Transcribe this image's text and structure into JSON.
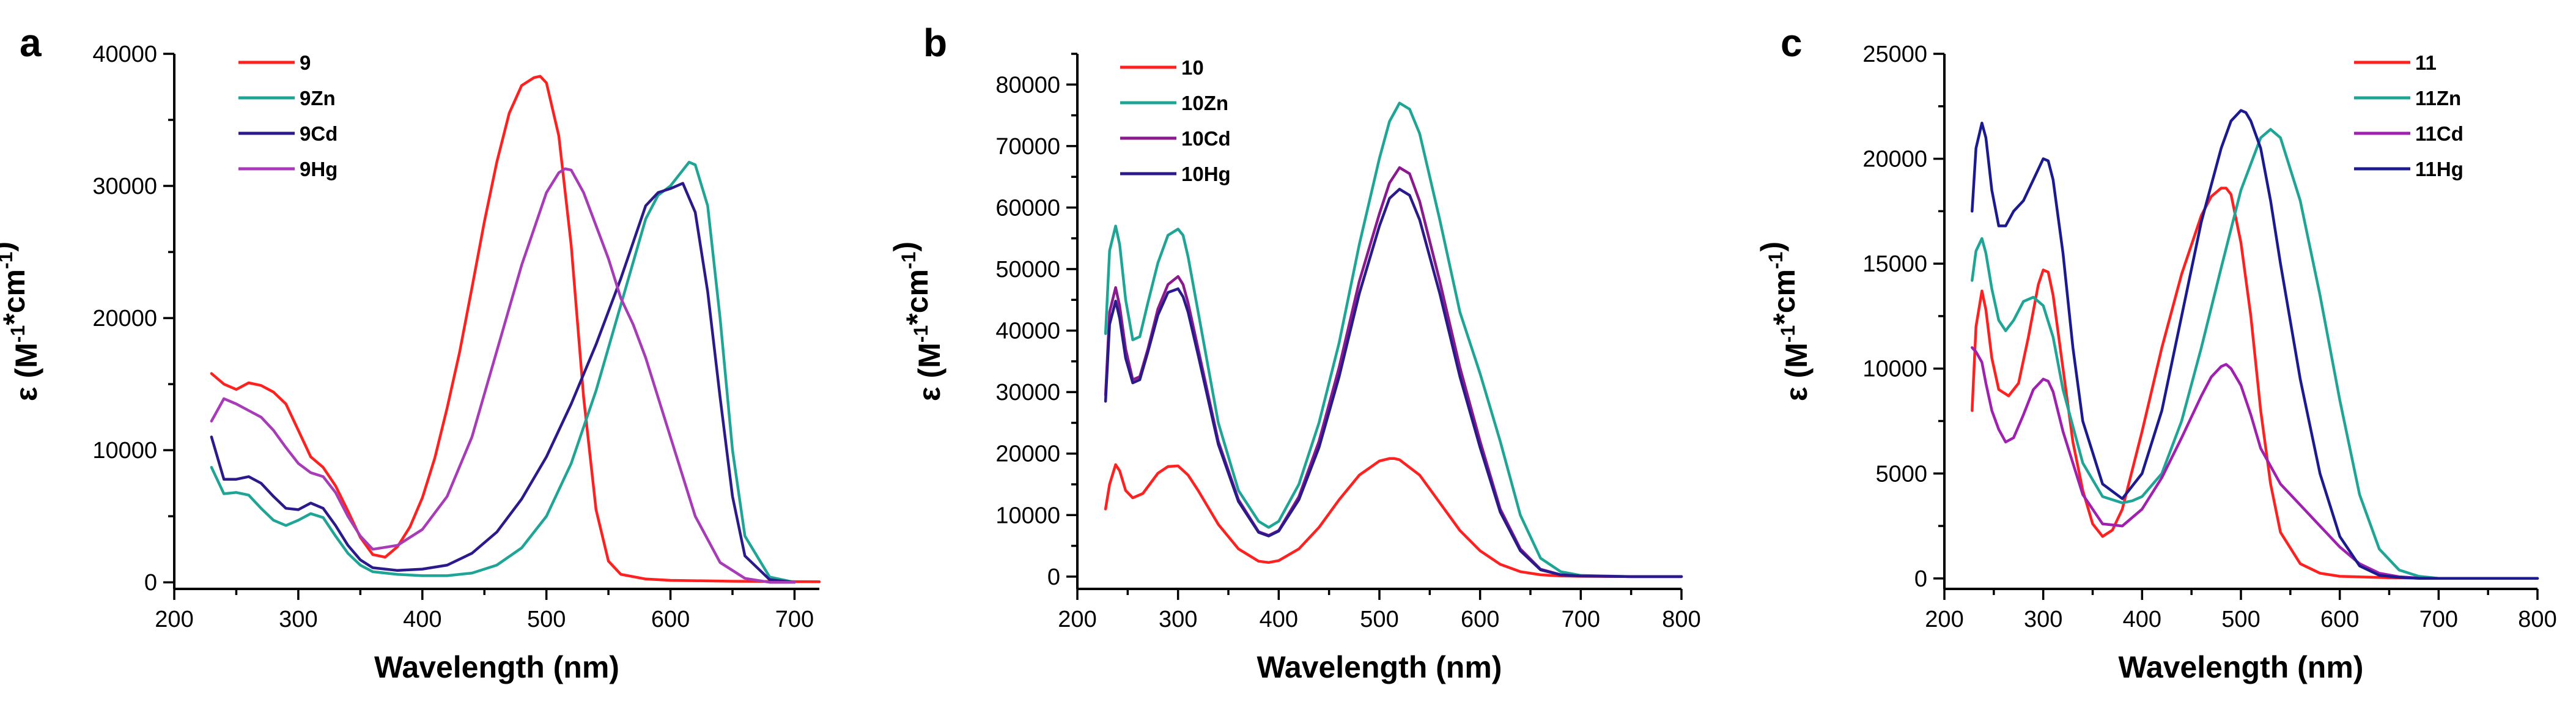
{
  "chart_data": [
    {
      "panel": "a",
      "type": "line",
      "title": "",
      "xlabel": "Wavelength (nm)",
      "ylabel_prefix": "ε (M",
      "ylabel_sup1": "-1",
      "ylabel_mid": "*cm",
      "ylabel_sup2": "-1",
      "ylabel_suffix": ")",
      "xlim": [
        200,
        720
      ],
      "ylim": [
        -500,
        40000
      ],
      "xticks": [
        200,
        300,
        400,
        500,
        600,
        700
      ],
      "yticks": [
        0,
        10000,
        20000,
        30000,
        40000
      ],
      "legend_position": "top-left",
      "series": [
        {
          "name": "9",
          "color": "#ff2020",
          "x": [
            230,
            240,
            250,
            260,
            270,
            280,
            290,
            300,
            310,
            320,
            330,
            340,
            350,
            360,
            370,
            380,
            390,
            400,
            410,
            420,
            430,
            440,
            450,
            460,
            470,
            480,
            490,
            495,
            500,
            510,
            520,
            530,
            540,
            550,
            560,
            580,
            600,
            650,
            700,
            720
          ],
          "y": [
            15800,
            15000,
            14600,
            15100,
            14900,
            14400,
            13500,
            11500,
            9500,
            8700,
            7300,
            5400,
            3400,
            2100,
            1900,
            2700,
            4200,
            6400,
            9400,
            13200,
            17400,
            22300,
            27300,
            31800,
            35500,
            37600,
            38200,
            38300,
            37800,
            33800,
            25500,
            14000,
            5500,
            1600,
            600,
            250,
            150,
            80,
            50,
            40
          ]
        },
        {
          "name": "9Zn",
          "color": "#1fa596",
          "x": [
            230,
            240,
            250,
            260,
            270,
            280,
            290,
            300,
            310,
            320,
            330,
            340,
            350,
            360,
            380,
            400,
            420,
            440,
            460,
            480,
            500,
            520,
            540,
            560,
            580,
            590,
            600,
            610,
            615,
            620,
            630,
            640,
            650,
            660,
            680,
            700
          ],
          "y": [
            8700,
            6700,
            6800,
            6600,
            5600,
            4700,
            4300,
            4700,
            5200,
            4900,
            3500,
            2200,
            1300,
            800,
            600,
            500,
            500,
            700,
            1300,
            2600,
            5000,
            9000,
            14500,
            21000,
            27500,
            29300,
            30000,
            31200,
            31800,
            31600,
            28500,
            20000,
            10000,
            3500,
            400,
            0
          ]
        },
        {
          "name": "9Cd",
          "color": "#2a1a8c",
          "x": [
            230,
            240,
            250,
            260,
            270,
            280,
            290,
            300,
            310,
            320,
            330,
            340,
            350,
            360,
            380,
            400,
            420,
            440,
            460,
            480,
            500,
            520,
            540,
            560,
            580,
            590,
            600,
            610,
            620,
            630,
            640,
            650,
            660,
            680,
            700
          ],
          "y": [
            11000,
            7800,
            7800,
            8000,
            7500,
            6500,
            5600,
            5500,
            6000,
            5600,
            4300,
            2800,
            1700,
            1100,
            900,
            1000,
            1300,
            2200,
            3800,
            6300,
            9500,
            13500,
            18000,
            23000,
            28500,
            29500,
            29800,
            30200,
            28000,
            22000,
            14000,
            6500,
            2000,
            200,
            0
          ]
        },
        {
          "name": "9Hg",
          "color": "#a83cb8",
          "x": [
            230,
            240,
            250,
            260,
            270,
            280,
            290,
            300,
            310,
            320,
            330,
            340,
            350,
            360,
            380,
            400,
            420,
            440,
            460,
            480,
            500,
            510,
            515,
            520,
            530,
            540,
            550,
            560,
            570,
            580,
            600,
            620,
            640,
            660,
            680,
            700
          ],
          "y": [
            12200,
            13900,
            13500,
            13000,
            12500,
            11500,
            10200,
            9000,
            8300,
            8000,
            6800,
            5000,
            3500,
            2500,
            2800,
            4000,
            6500,
            11000,
            17500,
            24000,
            29500,
            31000,
            31300,
            31200,
            29500,
            27000,
            24500,
            21500,
            19500,
            17000,
            11000,
            5000,
            1500,
            300,
            0,
            0
          ]
        }
      ]
    },
    {
      "panel": "b",
      "type": "line",
      "title": "",
      "xlabel": "Wavelength (nm)",
      "ylabel_prefix": "ε (M",
      "ylabel_sup1": "-1",
      "ylabel_mid": "*cm",
      "ylabel_sup2": "-1",
      "ylabel_suffix": ")",
      "xlim": [
        200,
        800
      ],
      "ylim": [
        -2000,
        85000
      ],
      "xticks": [
        200,
        300,
        400,
        500,
        600,
        700,
        800
      ],
      "yticks": [
        0,
        10000,
        20000,
        30000,
        40000,
        50000,
        60000,
        70000,
        80000
      ],
      "legend_position": "top-left",
      "series": [
        {
          "name": "10",
          "color": "#ff2020",
          "x": [
            228,
            232,
            238,
            242,
            248,
            255,
            265,
            280,
            290,
            300,
            310,
            320,
            340,
            360,
            380,
            390,
            400,
            420,
            440,
            460,
            480,
            500,
            510,
            515,
            520,
            540,
            560,
            580,
            600,
            620,
            640,
            660,
            680,
            700,
            750,
            800
          ],
          "y": [
            11000,
            15000,
            18200,
            17200,
            14000,
            12800,
            13500,
            16800,
            17900,
            18000,
            16500,
            14000,
            8500,
            4500,
            2500,
            2300,
            2600,
            4500,
            8000,
            12500,
            16500,
            18800,
            19200,
            19200,
            19000,
            16500,
            12000,
            7500,
            4200,
            2000,
            800,
            300,
            100,
            50,
            0,
            0
          ]
        },
        {
          "name": "10Zn",
          "color": "#1fa596",
          "x": [
            228,
            232,
            238,
            242,
            248,
            255,
            262,
            270,
            280,
            290,
            300,
            305,
            310,
            320,
            340,
            360,
            380,
            390,
            400,
            420,
            440,
            460,
            480,
            500,
            510,
            520,
            530,
            540,
            560,
            580,
            600,
            620,
            640,
            660,
            680,
            700,
            750,
            800
          ],
          "y": [
            39500,
            53000,
            57000,
            54000,
            45000,
            38500,
            39000,
            44500,
            51000,
            55500,
            56500,
            55500,
            52000,
            43000,
            25000,
            14000,
            9000,
            8000,
            9000,
            15000,
            25000,
            38000,
            54000,
            68000,
            74000,
            77000,
            76000,
            72000,
            58000,
            43000,
            33000,
            22000,
            10000,
            3000,
            800,
            200,
            0,
            0
          ]
        },
        {
          "name": "10Cd",
          "color": "#8a1a8e",
          "x": [
            228,
            232,
            238,
            242,
            248,
            255,
            262,
            270,
            280,
            290,
            300,
            305,
            310,
            320,
            340,
            360,
            380,
            390,
            400,
            420,
            440,
            460,
            480,
            500,
            510,
            520,
            530,
            540,
            560,
            580,
            600,
            620,
            640,
            660,
            680,
            700,
            750,
            800
          ],
          "y": [
            29500,
            43000,
            47000,
            44000,
            37000,
            32000,
            32500,
            37000,
            43500,
            47500,
            48800,
            47500,
            44500,
            37000,
            22000,
            12500,
            7300,
            6700,
            7500,
            13000,
            22000,
            34000,
            48000,
            59000,
            64000,
            66500,
            65500,
            61000,
            48000,
            34000,
            22000,
            11000,
            4500,
            1200,
            300,
            100,
            0,
            0
          ]
        },
        {
          "name": "10Hg",
          "color": "#2a1a8c",
          "x": [
            228,
            232,
            238,
            242,
            248,
            255,
            262,
            270,
            280,
            290,
            300,
            305,
            310,
            320,
            340,
            360,
            380,
            390,
            400,
            420,
            440,
            460,
            480,
            500,
            510,
            520,
            530,
            540,
            560,
            580,
            600,
            620,
            640,
            660,
            680,
            700,
            750,
            800
          ],
          "y": [
            28500,
            41000,
            44800,
            42000,
            35500,
            31500,
            32000,
            36500,
            42500,
            46200,
            46800,
            45500,
            43000,
            36000,
            21500,
            12200,
            7200,
            6600,
            7400,
            12500,
            21000,
            32500,
            46000,
            57000,
            61500,
            63000,
            62000,
            58000,
            46000,
            32500,
            21000,
            10500,
            4200,
            1100,
            300,
            100,
            0,
            0
          ]
        }
      ]
    },
    {
      "panel": "c",
      "type": "line",
      "title": "",
      "xlabel": "Wavelength (nm)",
      "ylabel_prefix": "ε (M",
      "ylabel_sup1": "-1",
      "ylabel_mid": "*cm",
      "ylabel_sup2": "-1",
      "ylabel_suffix": ")",
      "xlim": [
        200,
        800
      ],
      "ylim": [
        -500,
        25000
      ],
      "xticks": [
        200,
        300,
        400,
        500,
        600,
        700,
        800
      ],
      "yticks": [
        0,
        5000,
        10000,
        15000,
        20000,
        25000
      ],
      "legend_position": "top-right",
      "series": [
        {
          "name": "11",
          "color": "#ff2020",
          "x": [
            228,
            232,
            238,
            242,
            248,
            255,
            265,
            275,
            285,
            295,
            300,
            305,
            310,
            320,
            330,
            340,
            350,
            360,
            370,
            380,
            400,
            420,
            440,
            460,
            470,
            480,
            485,
            490,
            500,
            510,
            520,
            530,
            540,
            560,
            580,
            600,
            650,
            700,
            800
          ],
          "y": [
            8000,
            12000,
            13700,
            12800,
            10500,
            9000,
            8700,
            9300,
            11500,
            14000,
            14700,
            14600,
            13500,
            10000,
            6500,
            4200,
            2600,
            2000,
            2300,
            3300,
            7000,
            11000,
            14500,
            17300,
            18200,
            18600,
            18600,
            18300,
            16000,
            12500,
            8000,
            4500,
            2200,
            700,
            250,
            100,
            30,
            0,
            0
          ]
        },
        {
          "name": "11Zn",
          "color": "#1fa596",
          "x": [
            228,
            232,
            238,
            242,
            248,
            255,
            262,
            270,
            280,
            290,
            300,
            310,
            320,
            340,
            360,
            380,
            390,
            400,
            420,
            440,
            460,
            480,
            500,
            520,
            530,
            540,
            560,
            580,
            600,
            620,
            640,
            660,
            680,
            700,
            800
          ],
          "y": [
            14200,
            15600,
            16200,
            15500,
            13800,
            12300,
            11800,
            12300,
            13200,
            13400,
            13000,
            11500,
            9000,
            5500,
            3900,
            3600,
            3700,
            3900,
            5000,
            7500,
            11000,
            14800,
            18500,
            21000,
            21400,
            21000,
            18000,
            13500,
            8500,
            4000,
            1400,
            400,
            100,
            0,
            0
          ]
        },
        {
          "name": "11Cd",
          "color": "#a020b0",
          "x": [
            228,
            232,
            238,
            242,
            248,
            255,
            262,
            270,
            280,
            290,
            300,
            305,
            310,
            320,
            340,
            360,
            380,
            400,
            420,
            440,
            460,
            470,
            480,
            485,
            490,
            500,
            510,
            520,
            540,
            560,
            580,
            600,
            620,
            640,
            660,
            680,
            700,
            800
          ],
          "y": [
            11000,
            10800,
            10300,
            9300,
            8000,
            7100,
            6500,
            6700,
            7800,
            9000,
            9500,
            9400,
            8900,
            7000,
            4000,
            2600,
            2500,
            3300,
            4800,
            6700,
            8700,
            9600,
            10100,
            10200,
            10000,
            9200,
            7800,
            6200,
            4500,
            3500,
            2500,
            1500,
            700,
            250,
            80,
            20,
            0,
            0
          ]
        },
        {
          "name": "11Hg",
          "color": "#1c1a90",
          "x": [
            228,
            232,
            238,
            242,
            248,
            255,
            262,
            270,
            280,
            290,
            300,
            305,
            310,
            320,
            330,
            340,
            360,
            380,
            400,
            420,
            440,
            460,
            480,
            490,
            500,
            505,
            510,
            520,
            530,
            540,
            560,
            580,
            600,
            620,
            640,
            660,
            680,
            700,
            800
          ],
          "y": [
            17500,
            20500,
            21700,
            21000,
            18500,
            16800,
            16800,
            17500,
            18000,
            19000,
            20000,
            19900,
            19000,
            15500,
            11000,
            7500,
            4500,
            3800,
            5000,
            8000,
            12500,
            17000,
            20500,
            21800,
            22300,
            22200,
            21800,
            20500,
            18000,
            15000,
            9500,
            5000,
            2000,
            600,
            150,
            50,
            0,
            0,
            0
          ]
        }
      ]
    }
  ]
}
